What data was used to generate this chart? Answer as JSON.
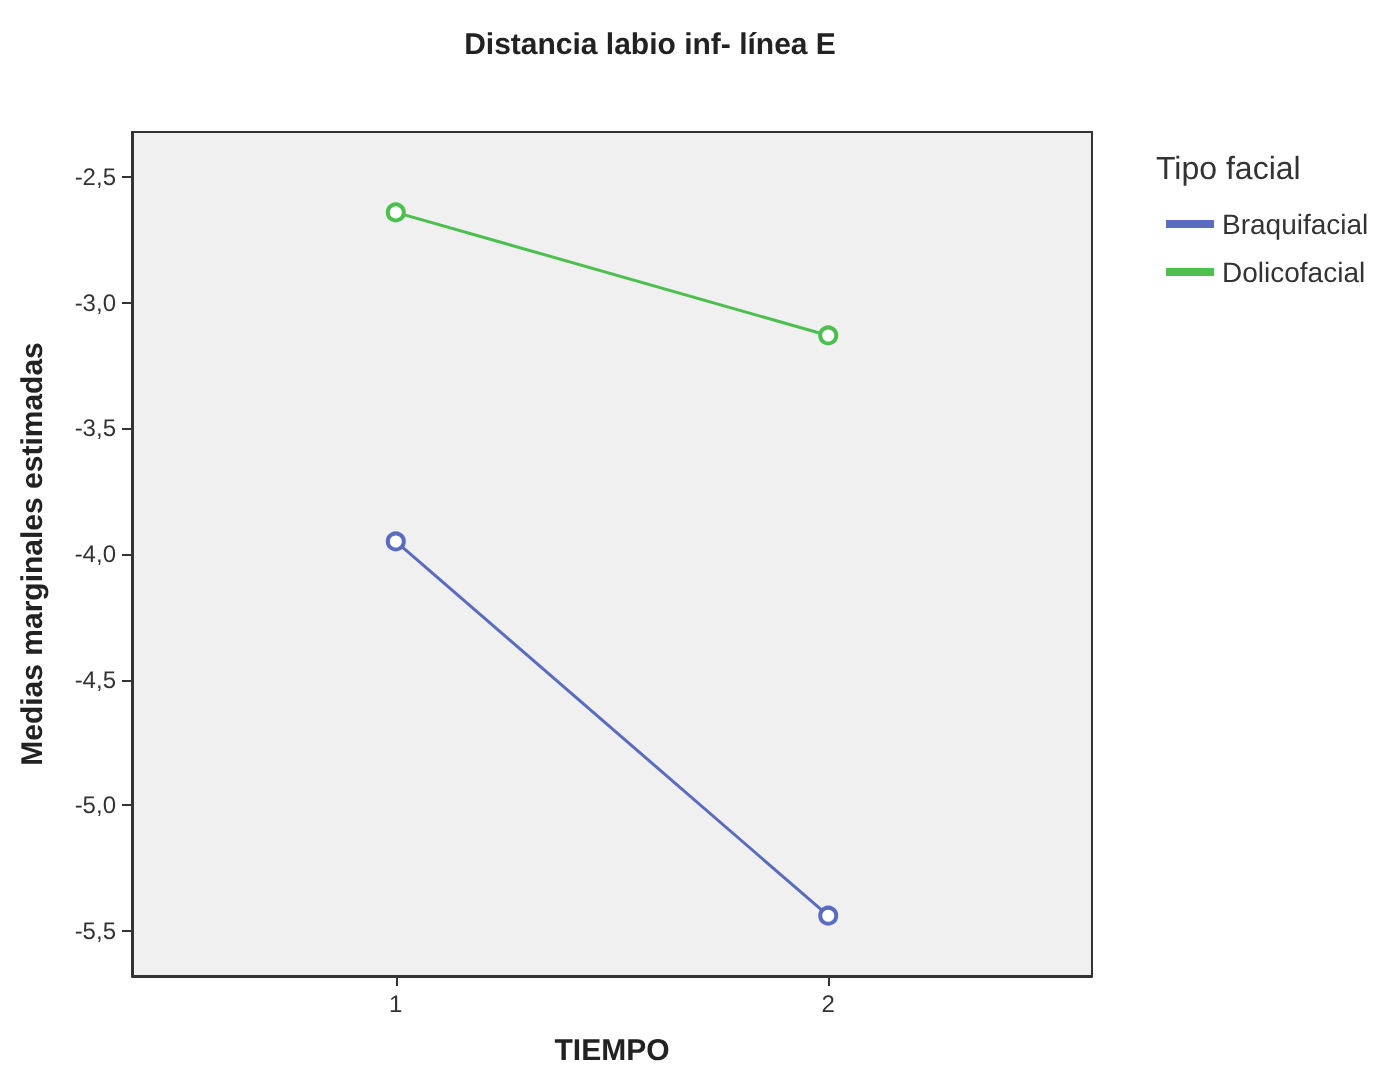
{
  "chart_data": {
    "type": "line",
    "title": "Distancia labio inf- línea E",
    "xlabel": "TIEMPO",
    "ylabel": "Medias marginales estimadas",
    "legend_title": "Tipo facial",
    "x": [
      1,
      2
    ],
    "series": [
      {
        "name": "Braquifacial",
        "color": "#5a6cbf",
        "values": [
          -3.95,
          -5.44
        ]
      },
      {
        "name": "Dolicofacial",
        "color": "#4cbf4f",
        "values": [
          -2.64,
          -3.13
        ]
      }
    ],
    "xlim": [
      0.39,
      2.61
    ],
    "xticks": [
      1,
      2
    ],
    "ylim": [
      -5.68,
      -2.32
    ],
    "yticks": [
      {
        "value": -5.5,
        "label": "-5,5"
      },
      {
        "value": -5,
        "label": "-5,0"
      },
      {
        "value": -4.5,
        "label": "-4,5"
      },
      {
        "value": -4,
        "label": "-4,0"
      },
      {
        "value": -3.5,
        "label": "-3,5"
      },
      {
        "value": -3,
        "label": "-3,0"
      },
      {
        "value": -2.5,
        "label": "-2,5"
      }
    ],
    "grid": false,
    "legend": "top right",
    "marker": "circle",
    "line_style": "solid"
  }
}
